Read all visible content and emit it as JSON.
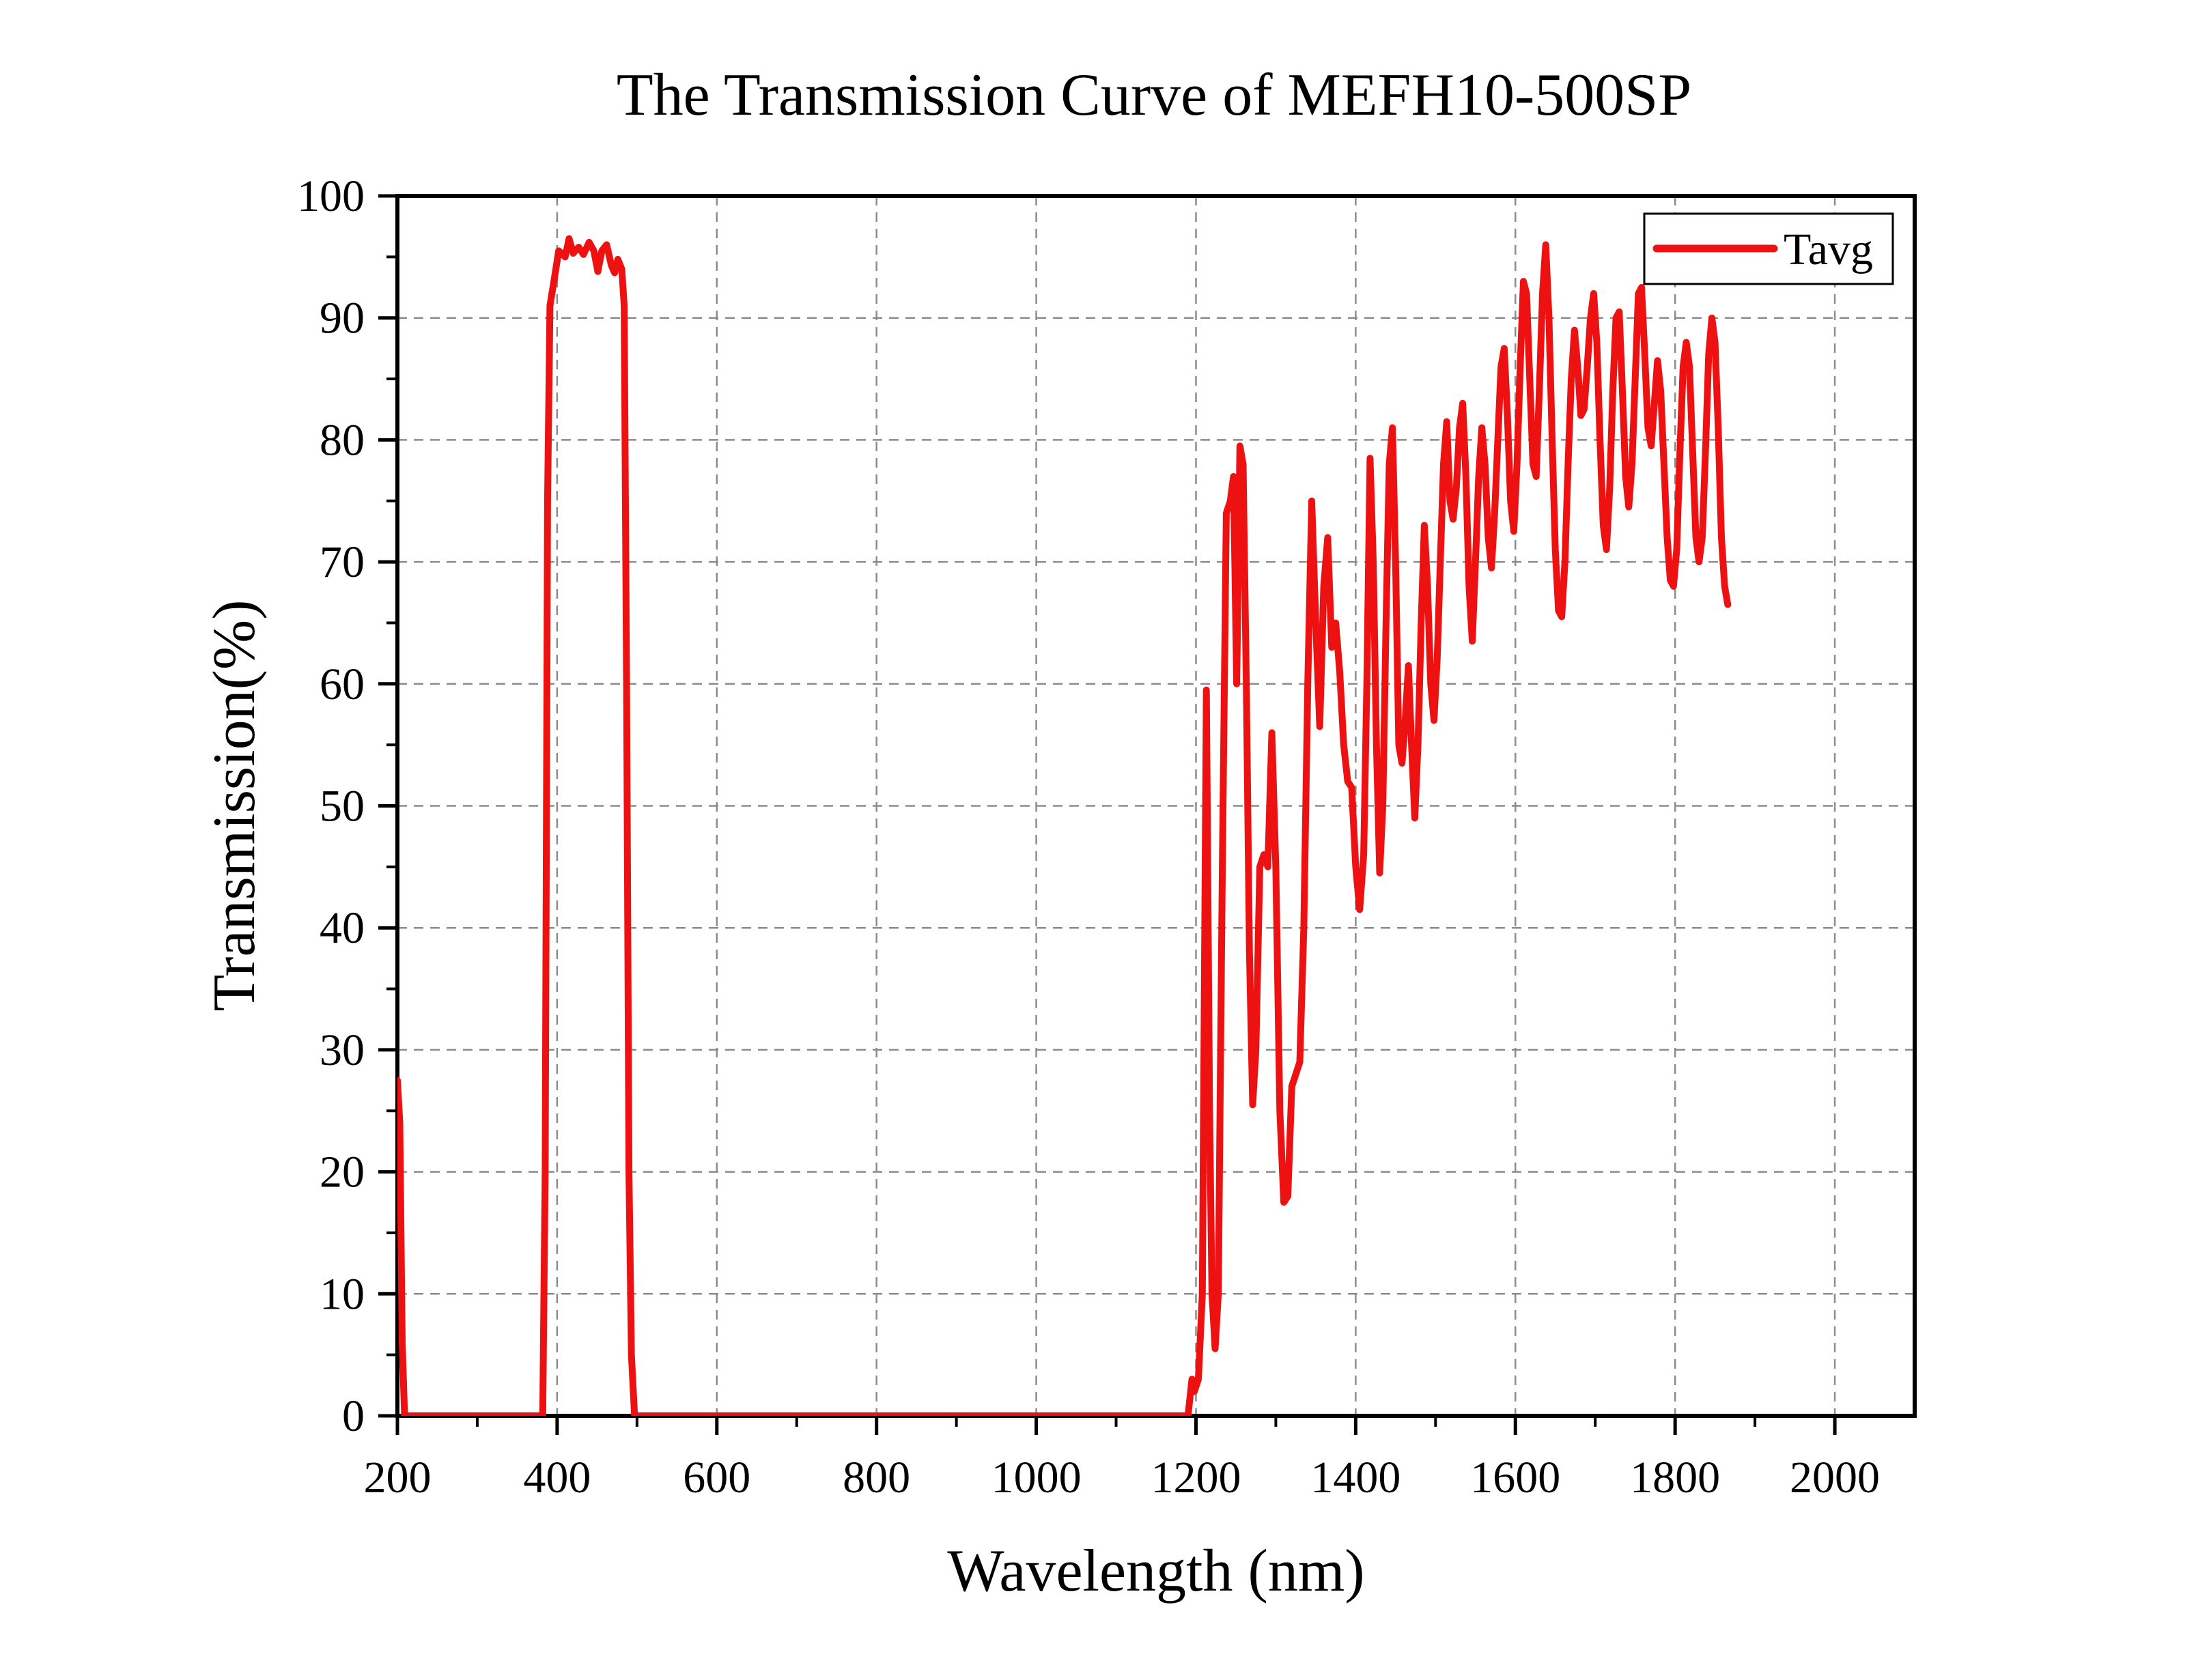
{
  "chart_data": {
    "type": "line",
    "title": "The Transmission Curve of MEFH10-500SP",
    "xlabel": "Wavelength (nm)",
    "ylabel": "Transmission(%)",
    "xlim": [
      200,
      2100
    ],
    "ylim": [
      0,
      100
    ],
    "xticks": [
      200,
      400,
      600,
      800,
      1000,
      1200,
      1400,
      1600,
      1800,
      2000
    ],
    "yticks": [
      0,
      10,
      20,
      30,
      40,
      50,
      60,
      70,
      80,
      90,
      100
    ],
    "grid": true,
    "legend_position": "top-right",
    "series": [
      {
        "name": "Tavg",
        "color": "#ee1111",
        "points": [
          [
            200,
            27.5
          ],
          [
            203,
            24
          ],
          [
            206,
            6
          ],
          [
            209,
            0
          ],
          [
            300,
            0
          ],
          [
            382,
            0
          ],
          [
            385,
            20
          ],
          [
            388,
            75
          ],
          [
            391,
            91
          ],
          [
            396,
            93
          ],
          [
            402,
            95.5
          ],
          [
            410,
            95
          ],
          [
            415,
            96.5
          ],
          [
            420,
            95.3
          ],
          [
            427,
            95.8
          ],
          [
            433,
            95.2
          ],
          [
            440,
            96.2
          ],
          [
            446,
            95.5
          ],
          [
            451,
            93.8
          ],
          [
            456,
            95.5
          ],
          [
            462,
            96
          ],
          [
            468,
            94.3
          ],
          [
            472,
            93.7
          ],
          [
            476,
            94.8
          ],
          [
            481,
            94
          ],
          [
            484,
            91
          ],
          [
            487,
            60
          ],
          [
            490,
            20
          ],
          [
            493,
            5
          ],
          [
            497,
            0
          ],
          [
            700,
            0
          ],
          [
            1000,
            0
          ],
          [
            1190,
            0
          ],
          [
            1195,
            3
          ],
          [
            1198,
            2
          ],
          [
            1203,
            3
          ],
          [
            1208,
            10
          ],
          [
            1213,
            59.5
          ],
          [
            1217,
            25
          ],
          [
            1220,
            10
          ],
          [
            1224,
            5.5
          ],
          [
            1228,
            10
          ],
          [
            1233,
            45
          ],
          [
            1238,
            74
          ],
          [
            1243,
            75
          ],
          [
            1247,
            77
          ],
          [
            1251,
            60
          ],
          [
            1255,
            79.5
          ],
          [
            1259,
            78
          ],
          [
            1263,
            60
          ],
          [
            1267,
            38
          ],
          [
            1271,
            25.5
          ],
          [
            1275,
            30
          ],
          [
            1280,
            45
          ],
          [
            1285,
            46
          ],
          [
            1290,
            45
          ],
          [
            1295,
            56
          ],
          [
            1300,
            45
          ],
          [
            1305,
            25
          ],
          [
            1310,
            17.5
          ],
          [
            1315,
            18
          ],
          [
            1320,
            27
          ],
          [
            1325,
            28
          ],
          [
            1330,
            29
          ],
          [
            1335,
            40
          ],
          [
            1340,
            60
          ],
          [
            1345,
            75
          ],
          [
            1350,
            65
          ],
          [
            1355,
            56.5
          ],
          [
            1360,
            68
          ],
          [
            1365,
            72
          ],
          [
            1370,
            63
          ],
          [
            1375,
            65
          ],
          [
            1380,
            61
          ],
          [
            1385,
            55
          ],
          [
            1390,
            52
          ],
          [
            1395,
            51.5
          ],
          [
            1400,
            45
          ],
          [
            1405,
            41.5
          ],
          [
            1410,
            46
          ],
          [
            1414,
            60
          ],
          [
            1418,
            78.5
          ],
          [
            1422,
            70
          ],
          [
            1426,
            55
          ],
          [
            1430,
            44.5
          ],
          [
            1434,
            50
          ],
          [
            1438,
            65
          ],
          [
            1442,
            78
          ],
          [
            1446,
            81
          ],
          [
            1450,
            70
          ],
          [
            1454,
            55
          ],
          [
            1458,
            53.5
          ],
          [
            1462,
            57
          ],
          [
            1466,
            61.5
          ],
          [
            1470,
            55
          ],
          [
            1474,
            49
          ],
          [
            1478,
            55
          ],
          [
            1482,
            65
          ],
          [
            1486,
            73
          ],
          [
            1490,
            68
          ],
          [
            1494,
            60
          ],
          [
            1498,
            57
          ],
          [
            1502,
            62
          ],
          [
            1506,
            70
          ],
          [
            1510,
            78
          ],
          [
            1514,
            81.5
          ],
          [
            1518,
            75
          ],
          [
            1522,
            73.5
          ],
          [
            1526,
            76
          ],
          [
            1530,
            81
          ],
          [
            1534,
            83
          ],
          [
            1538,
            77
          ],
          [
            1542,
            68
          ],
          [
            1546,
            63.5
          ],
          [
            1550,
            70
          ],
          [
            1554,
            77
          ],
          [
            1558,
            81
          ],
          [
            1562,
            78
          ],
          [
            1566,
            72
          ],
          [
            1570,
            69.5
          ],
          [
            1574,
            74
          ],
          [
            1578,
            80
          ],
          [
            1582,
            86
          ],
          [
            1586,
            87.5
          ],
          [
            1590,
            82
          ],
          [
            1594,
            75
          ],
          [
            1598,
            72.5
          ],
          [
            1602,
            78
          ],
          [
            1606,
            86
          ],
          [
            1610,
            93
          ],
          [
            1614,
            92
          ],
          [
            1618,
            85
          ],
          [
            1622,
            78
          ],
          [
            1626,
            77
          ],
          [
            1630,
            84
          ],
          [
            1634,
            92
          ],
          [
            1638,
            96
          ],
          [
            1642,
            90
          ],
          [
            1646,
            80
          ],
          [
            1650,
            71
          ],
          [
            1654,
            66
          ],
          [
            1658,
            65.5
          ],
          [
            1662,
            70
          ],
          [
            1666,
            78
          ],
          [
            1670,
            85
          ],
          [
            1674,
            89
          ],
          [
            1678,
            86
          ],
          [
            1682,
            82
          ],
          [
            1686,
            82.5
          ],
          [
            1690,
            86
          ],
          [
            1694,
            90
          ],
          [
            1698,
            92
          ],
          [
            1702,
            88
          ],
          [
            1706,
            80
          ],
          [
            1710,
            73
          ],
          [
            1714,
            71
          ],
          [
            1718,
            76
          ],
          [
            1722,
            84
          ],
          [
            1726,
            90
          ],
          [
            1730,
            90.5
          ],
          [
            1734,
            84
          ],
          [
            1738,
            77
          ],
          [
            1742,
            74.5
          ],
          [
            1746,
            78
          ],
          [
            1750,
            85
          ],
          [
            1754,
            92
          ],
          [
            1758,
            92.5
          ],
          [
            1762,
            87
          ],
          [
            1766,
            81
          ],
          [
            1770,
            79.5
          ],
          [
            1774,
            83
          ],
          [
            1778,
            86.5
          ],
          [
            1782,
            84
          ],
          [
            1786,
            78
          ],
          [
            1790,
            72
          ],
          [
            1794,
            68.5
          ],
          [
            1798,
            68
          ],
          [
            1802,
            71
          ],
          [
            1806,
            79
          ],
          [
            1810,
            86
          ],
          [
            1814,
            88
          ],
          [
            1818,
            86
          ],
          [
            1822,
            79
          ],
          [
            1826,
            72
          ],
          [
            1830,
            70
          ],
          [
            1834,
            72
          ],
          [
            1838,
            79
          ],
          [
            1842,
            87
          ],
          [
            1846,
            90
          ],
          [
            1850,
            88
          ],
          [
            1854,
            81
          ],
          [
            1858,
            72
          ],
          [
            1862,
            68
          ],
          [
            1866,
            66.5
          ]
        ]
      }
    ]
  }
}
